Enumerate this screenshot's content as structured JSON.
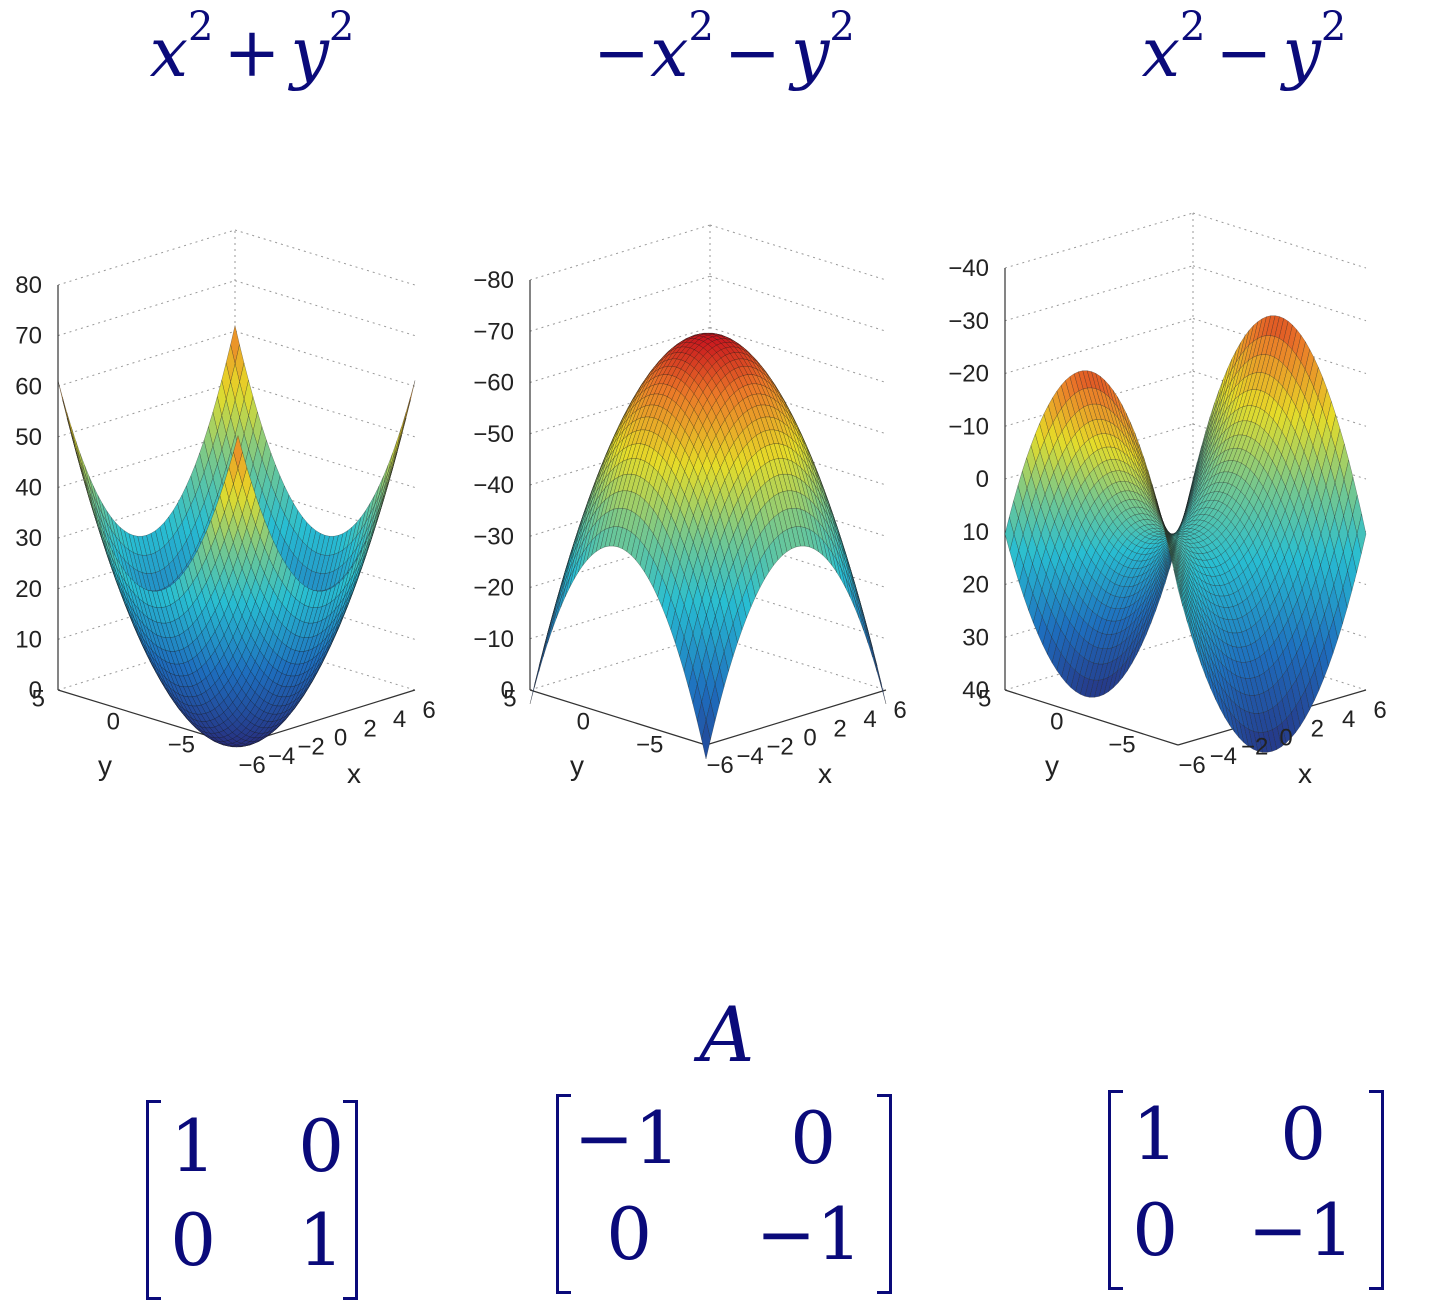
{
  "titles": [
    {
      "a": "x",
      "sa": "2",
      "op": "+",
      "b": "y",
      "sb": "2",
      "prefix": ""
    },
    {
      "a": "x",
      "sa": "2",
      "op": "−",
      "b": "y",
      "sb": "2",
      "prefix": "−"
    },
    {
      "a": "x",
      "sa": "2",
      "op": "−",
      "b": "y",
      "sb": "2",
      "prefix": ""
    }
  ],
  "matrix_label": "A",
  "matrices": [
    {
      "cells": [
        "1",
        "0",
        "0",
        "1"
      ]
    },
    {
      "cells": [
        "−1",
        "0",
        "0",
        "−1"
      ]
    },
    {
      "cells": [
        "1",
        "0",
        "0",
        "−1"
      ]
    }
  ],
  "chart_data": [
    {
      "type": "surface",
      "function": "x^2 + y^2",
      "zticks": [
        "0",
        "10",
        "20",
        "30",
        "40",
        "50",
        "60",
        "70",
        "80"
      ],
      "xticks": [
        "−6",
        "−4",
        "−2",
        "0",
        "2",
        "4",
        "6"
      ],
      "yticks": [
        "−5",
        "0",
        "5"
      ],
      "xlabel": "x",
      "ylabel": "y"
    },
    {
      "type": "surface",
      "function": "-x^2 - y^2",
      "zticks": [
        "0",
        "−10",
        "−20",
        "−30",
        "−40",
        "−50",
        "−60",
        "−70",
        "−80"
      ],
      "xticks": [
        "−6",
        "−4",
        "−2",
        "0",
        "2",
        "4",
        "6"
      ],
      "yticks": [
        "−5",
        "0",
        "5"
      ],
      "xlabel": "x",
      "ylabel": "y"
    },
    {
      "type": "surface",
      "function": "x^2 - y^2",
      "zticks": [
        "40",
        "30",
        "20",
        "10",
        "0",
        "−10",
        "−20",
        "−30",
        "−40"
      ],
      "xticks": [
        "−6",
        "−4",
        "−2",
        "0",
        "2",
        "4",
        "6"
      ],
      "yticks": [
        "−5",
        "0",
        "5"
      ],
      "xlabel": "x",
      "ylabel": "y"
    }
  ]
}
